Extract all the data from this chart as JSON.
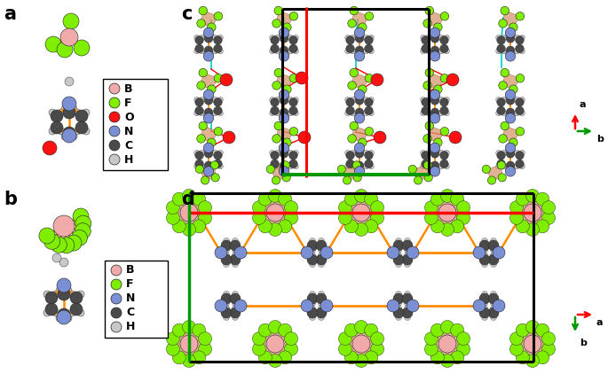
{
  "B_color": "#F0AAAA",
  "F_color": "#80EE00",
  "O_color": "#FF1111",
  "N_color": "#7B8FD4",
  "C_color": "#4A4A4A",
  "H_color": "#C8C8C8",
  "bond_color": "#FF8C00",
  "cyan_color": "#00CCCC",
  "red_hbond": "#FF0000",
  "black_cell": "#000000",
  "green_cell": "#009900",
  "red_cell": "#FF0000",
  "bf4_face_color": "#D4956A",
  "bf4_edge_color": "#9B6B3A",
  "bg": "#FFFFFF",
  "legend_a": {
    "items": [
      "B",
      "F",
      "O",
      "N",
      "C",
      "H"
    ],
    "colors": [
      "#F0AAAA",
      "#80EE00",
      "#FF1111",
      "#7B8FD4",
      "#4A4A4A",
      "#C8C8C8"
    ]
  },
  "legend_b": {
    "items": [
      "B",
      "F",
      "N",
      "C",
      "H"
    ],
    "colors": [
      "#F0AAAA",
      "#80EE00",
      "#7B8FD4",
      "#4A4A4A",
      "#C8C8C8"
    ]
  }
}
